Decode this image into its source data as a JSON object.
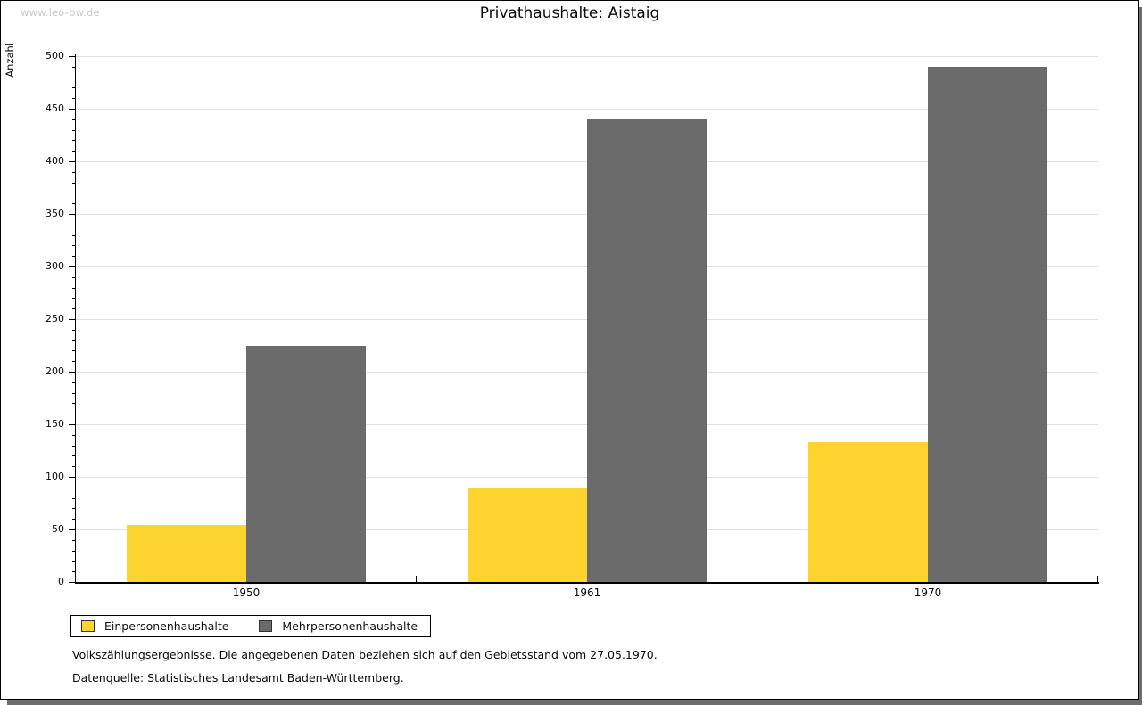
{
  "watermark": "www.leo-bw.de",
  "colors": {
    "bar_yellow": "#FDD42E",
    "bar_gray": "#6B6B6B",
    "gridline": "#E2E2E2",
    "axis": "#000000",
    "watermark_gray": "#C9C9C9",
    "shadow_gray": "#6E6E6E"
  },
  "chart_data": {
    "type": "bar",
    "title": "Privathaushalte: Aistaig",
    "categories": [
      "1950",
      "1961",
      "1970"
    ],
    "series": [
      {
        "name": "Einpersonenhaushalte",
        "color": "#FDD42E",
        "values": [
          54,
          89,
          133
        ]
      },
      {
        "name": "Mehrpersonenhaushalte",
        "color": "#6B6B6B",
        "values": [
          225,
          440,
          490
        ]
      }
    ],
    "xlabel": "",
    "ylabel": "Anzahl",
    "ylim": [
      0,
      500
    ],
    "ytick_step": 50,
    "yminor_step": 10,
    "grid": true,
    "legend_position": "bottom-left"
  },
  "footnotes": {
    "line1": "Volkszählungsergebnisse. Die angegebenen Daten beziehen sich auf den Gebietsstand vom 27.05.1970.",
    "line2": "Datenquelle: Statistisches Landesamt Baden-Württemberg."
  }
}
